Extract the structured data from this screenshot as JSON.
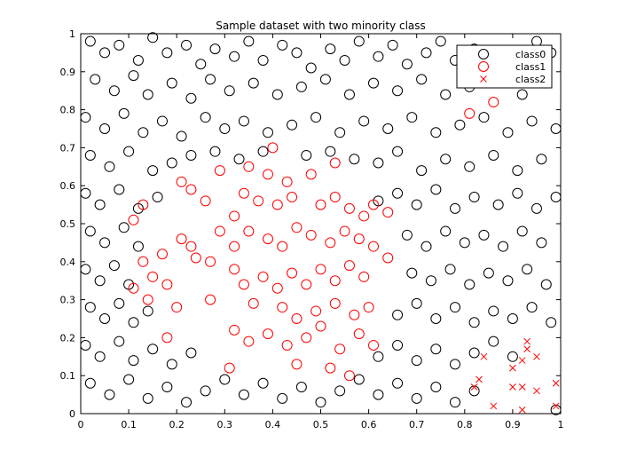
{
  "chart_data": {
    "type": "scatter",
    "title": "Sample dataset with two minority class",
    "xlabel": "",
    "ylabel": "",
    "xlim": [
      0,
      1
    ],
    "ylim": [
      0,
      1
    ],
    "xticks": [
      "0",
      "0.1",
      "0.2",
      "0.3",
      "0.4",
      "0.5",
      "0.6",
      "0.7",
      "0.8",
      "0.9",
      "1"
    ],
    "yticks": [
      "0",
      "0.1",
      "0.2",
      "0.3",
      "0.4",
      "0.5",
      "0.6",
      "0.7",
      "0.8",
      "0.9",
      "1"
    ],
    "grid": false,
    "legend_position": "top-right",
    "series": [
      {
        "name": "class0",
        "marker": "circle",
        "color": "#000000",
        "points": [
          [
            0.02,
            0.98
          ],
          [
            0.05,
            0.95
          ],
          [
            0.08,
            0.97
          ],
          [
            0.12,
            0.93
          ],
          [
            0.15,
            0.99
          ],
          [
            0.18,
            0.95
          ],
          [
            0.22,
            0.97
          ],
          [
            0.25,
            0.92
          ],
          [
            0.28,
            0.96
          ],
          [
            0.32,
            0.94
          ],
          [
            0.35,
            0.98
          ],
          [
            0.38,
            0.93
          ],
          [
            0.42,
            0.97
          ],
          [
            0.45,
            0.95
          ],
          [
            0.48,
            0.91
          ],
          [
            0.52,
            0.96
          ],
          [
            0.55,
            0.93
          ],
          [
            0.58,
            0.98
          ],
          [
            0.62,
            0.94
          ],
          [
            0.65,
            0.97
          ],
          [
            0.68,
            0.92
          ],
          [
            0.72,
            0.95
          ],
          [
            0.75,
            0.98
          ],
          [
            0.78,
            0.93
          ],
          [
            0.82,
            0.96
          ],
          [
            0.95,
            0.98
          ],
          [
            0.98,
            0.95
          ],
          [
            0.03,
            0.88
          ],
          [
            0.07,
            0.85
          ],
          [
            0.11,
            0.89
          ],
          [
            0.14,
            0.84
          ],
          [
            0.19,
            0.87
          ],
          [
            0.23,
            0.83
          ],
          [
            0.27,
            0.88
          ],
          [
            0.31,
            0.85
          ],
          [
            0.36,
            0.87
          ],
          [
            0.41,
            0.84
          ],
          [
            0.46,
            0.86
          ],
          [
            0.51,
            0.88
          ],
          [
            0.56,
            0.84
          ],
          [
            0.61,
            0.87
          ],
          [
            0.66,
            0.85
          ],
          [
            0.71,
            0.88
          ],
          [
            0.76,
            0.84
          ],
          [
            0.81,
            0.86
          ],
          [
            0.86,
            0.88
          ],
          [
            0.92,
            0.84
          ],
          [
            0.97,
            0.87
          ],
          [
            0.01,
            0.78
          ],
          [
            0.05,
            0.75
          ],
          [
            0.09,
            0.79
          ],
          [
            0.13,
            0.74
          ],
          [
            0.17,
            0.77
          ],
          [
            0.21,
            0.73
          ],
          [
            0.26,
            0.78
          ],
          [
            0.3,
            0.75
          ],
          [
            0.34,
            0.77
          ],
          [
            0.39,
            0.74
          ],
          [
            0.44,
            0.76
          ],
          [
            0.49,
            0.78
          ],
          [
            0.54,
            0.74
          ],
          [
            0.59,
            0.77
          ],
          [
            0.64,
            0.75
          ],
          [
            0.69,
            0.78
          ],
          [
            0.74,
            0.74
          ],
          [
            0.79,
            0.76
          ],
          [
            0.84,
            0.78
          ],
          [
            0.89,
            0.74
          ],
          [
            0.94,
            0.77
          ],
          [
            0.99,
            0.75
          ],
          [
            0.02,
            0.68
          ],
          [
            0.06,
            0.65
          ],
          [
            0.1,
            0.69
          ],
          [
            0.15,
            0.64
          ],
          [
            0.19,
            0.66
          ],
          [
            0.23,
            0.68
          ],
          [
            0.28,
            0.69
          ],
          [
            0.33,
            0.67
          ],
          [
            0.38,
            0.69
          ],
          [
            0.47,
            0.68
          ],
          [
            0.52,
            0.69
          ],
          [
            0.57,
            0.67
          ],
          [
            0.62,
            0.66
          ],
          [
            0.66,
            0.69
          ],
          [
            0.71,
            0.64
          ],
          [
            0.76,
            0.67
          ],
          [
            0.81,
            0.65
          ],
          [
            0.86,
            0.68
          ],
          [
            0.91,
            0.64
          ],
          [
            0.96,
            0.67
          ],
          [
            0.01,
            0.58
          ],
          [
            0.04,
            0.55
          ],
          [
            0.08,
            0.59
          ],
          [
            0.12,
            0.54
          ],
          [
            0.16,
            0.57
          ],
          [
            0.62,
            0.56
          ],
          [
            0.66,
            0.58
          ],
          [
            0.7,
            0.55
          ],
          [
            0.74,
            0.59
          ],
          [
            0.78,
            0.54
          ],
          [
            0.82,
            0.57
          ],
          [
            0.87,
            0.55
          ],
          [
            0.91,
            0.58
          ],
          [
            0.95,
            0.54
          ],
          [
            0.99,
            0.57
          ],
          [
            0.02,
            0.48
          ],
          [
            0.05,
            0.45
          ],
          [
            0.09,
            0.49
          ],
          [
            0.12,
            0.44
          ],
          [
            0.68,
            0.47
          ],
          [
            0.72,
            0.44
          ],
          [
            0.76,
            0.48
          ],
          [
            0.8,
            0.45
          ],
          [
            0.84,
            0.47
          ],
          [
            0.88,
            0.44
          ],
          [
            0.92,
            0.48
          ],
          [
            0.96,
            0.45
          ],
          [
            0.01,
            0.38
          ],
          [
            0.04,
            0.35
          ],
          [
            0.07,
            0.39
          ],
          [
            0.1,
            0.34
          ],
          [
            0.69,
            0.37
          ],
          [
            0.73,
            0.35
          ],
          [
            0.77,
            0.38
          ],
          [
            0.81,
            0.34
          ],
          [
            0.85,
            0.37
          ],
          [
            0.89,
            0.35
          ],
          [
            0.93,
            0.38
          ],
          [
            0.97,
            0.34
          ],
          [
            0.02,
            0.28
          ],
          [
            0.05,
            0.25
          ],
          [
            0.08,
            0.29
          ],
          [
            0.11,
            0.24
          ],
          [
            0.14,
            0.27
          ],
          [
            0.66,
            0.26
          ],
          [
            0.7,
            0.29
          ],
          [
            0.74,
            0.25
          ],
          [
            0.78,
            0.28
          ],
          [
            0.82,
            0.24
          ],
          [
            0.86,
            0.27
          ],
          [
            0.9,
            0.25
          ],
          [
            0.94,
            0.28
          ],
          [
            0.98,
            0.24
          ],
          [
            0.01,
            0.18
          ],
          [
            0.04,
            0.15
          ],
          [
            0.08,
            0.19
          ],
          [
            0.11,
            0.14
          ],
          [
            0.15,
            0.17
          ],
          [
            0.19,
            0.13
          ],
          [
            0.23,
            0.16
          ],
          [
            0.62,
            0.15
          ],
          [
            0.66,
            0.18
          ],
          [
            0.7,
            0.14
          ],
          [
            0.74,
            0.17
          ],
          [
            0.78,
            0.13
          ],
          [
            0.82,
            0.16
          ],
          [
            0.86,
            0.19
          ],
          [
            0.9,
            0.15
          ],
          [
            0.02,
            0.08
          ],
          [
            0.06,
            0.05
          ],
          [
            0.1,
            0.09
          ],
          [
            0.14,
            0.04
          ],
          [
            0.18,
            0.07
          ],
          [
            0.22,
            0.03
          ],
          [
            0.26,
            0.06
          ],
          [
            0.3,
            0.09
          ],
          [
            0.34,
            0.05
          ],
          [
            0.38,
            0.08
          ],
          [
            0.42,
            0.04
          ],
          [
            0.46,
            0.07
          ],
          [
            0.5,
            0.03
          ],
          [
            0.54,
            0.06
          ],
          [
            0.58,
            0.09
          ],
          [
            0.62,
            0.05
          ],
          [
            0.66,
            0.08
          ],
          [
            0.7,
            0.04
          ],
          [
            0.74,
            0.07
          ],
          [
            0.78,
            0.03
          ],
          [
            0.82,
            0.06
          ],
          [
            0.99,
            0.01
          ]
        ]
      },
      {
        "name": "class1",
        "marker": "circle",
        "color": "#ff0000",
        "points": [
          [
            0.81,
            0.79
          ],
          [
            0.86,
            0.82
          ],
          [
            0.4,
            0.7
          ],
          [
            0.29,
            0.64
          ],
          [
            0.35,
            0.65
          ],
          [
            0.39,
            0.63
          ],
          [
            0.48,
            0.63
          ],
          [
            0.53,
            0.66
          ],
          [
            0.43,
            0.61
          ],
          [
            0.21,
            0.61
          ],
          [
            0.23,
            0.59
          ],
          [
            0.26,
            0.56
          ],
          [
            0.11,
            0.51
          ],
          [
            0.13,
            0.55
          ],
          [
            0.34,
            0.58
          ],
          [
            0.37,
            0.56
          ],
          [
            0.32,
            0.52
          ],
          [
            0.29,
            0.48
          ],
          [
            0.41,
            0.55
          ],
          [
            0.44,
            0.57
          ],
          [
            0.5,
            0.55
          ],
          [
            0.53,
            0.57
          ],
          [
            0.56,
            0.54
          ],
          [
            0.59,
            0.52
          ],
          [
            0.61,
            0.55
          ],
          [
            0.64,
            0.53
          ],
          [
            0.21,
            0.46
          ],
          [
            0.23,
            0.44
          ],
          [
            0.17,
            0.42
          ],
          [
            0.13,
            0.4
          ],
          [
            0.24,
            0.41
          ],
          [
            0.27,
            0.4
          ],
          [
            0.32,
            0.44
          ],
          [
            0.35,
            0.48
          ],
          [
            0.39,
            0.46
          ],
          [
            0.42,
            0.44
          ],
          [
            0.45,
            0.49
          ],
          [
            0.48,
            0.47
          ],
          [
            0.52,
            0.45
          ],
          [
            0.55,
            0.48
          ],
          [
            0.58,
            0.46
          ],
          [
            0.61,
            0.44
          ],
          [
            0.64,
            0.41
          ],
          [
            0.15,
            0.36
          ],
          [
            0.18,
            0.34
          ],
          [
            0.11,
            0.33
          ],
          [
            0.14,
            0.3
          ],
          [
            0.32,
            0.38
          ],
          [
            0.34,
            0.34
          ],
          [
            0.38,
            0.36
          ],
          [
            0.41,
            0.33
          ],
          [
            0.44,
            0.37
          ],
          [
            0.47,
            0.34
          ],
          [
            0.5,
            0.38
          ],
          [
            0.53,
            0.35
          ],
          [
            0.56,
            0.39
          ],
          [
            0.59,
            0.36
          ],
          [
            0.2,
            0.28
          ],
          [
            0.27,
            0.3
          ],
          [
            0.36,
            0.29
          ],
          [
            0.42,
            0.28
          ],
          [
            0.45,
            0.25
          ],
          [
            0.49,
            0.27
          ],
          [
            0.53,
            0.29
          ],
          [
            0.57,
            0.26
          ],
          [
            0.6,
            0.28
          ],
          [
            0.18,
            0.2
          ],
          [
            0.32,
            0.22
          ],
          [
            0.35,
            0.19
          ],
          [
            0.39,
            0.21
          ],
          [
            0.43,
            0.18
          ],
          [
            0.47,
            0.2
          ],
          [
            0.5,
            0.23
          ],
          [
            0.54,
            0.17
          ],
          [
            0.58,
            0.21
          ],
          [
            0.61,
            0.18
          ],
          [
            0.31,
            0.12
          ],
          [
            0.45,
            0.13
          ],
          [
            0.52,
            0.12
          ],
          [
            0.56,
            0.1
          ]
        ]
      },
      {
        "name": "class2",
        "marker": "x",
        "color": "#ff0000",
        "points": [
          [
            0.84,
            0.15
          ],
          [
            0.9,
            0.12
          ],
          [
            0.92,
            0.14
          ],
          [
            0.93,
            0.17
          ],
          [
            0.95,
            0.15
          ],
          [
            0.93,
            0.19
          ],
          [
            0.82,
            0.07
          ],
          [
            0.83,
            0.09
          ],
          [
            0.9,
            0.07
          ],
          [
            0.92,
            0.07
          ],
          [
            0.95,
            0.06
          ],
          [
            0.99,
            0.08
          ],
          [
            0.86,
            0.02
          ],
          [
            0.92,
            0.01
          ],
          [
            0.99,
            0.02
          ]
        ]
      }
    ]
  }
}
